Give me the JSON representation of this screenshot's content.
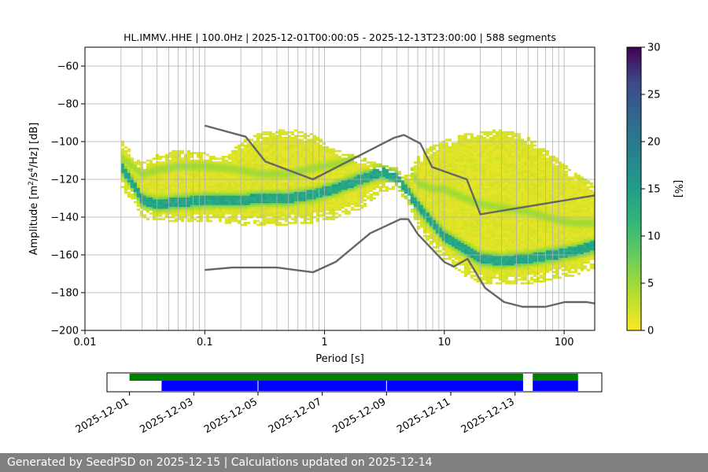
{
  "chart_data": [
    {
      "type": "heatmap",
      "title": "HL.IMMV..HHE | 100.0Hz | 2025-12-01T00:00:05 - 2025-12-13T23:00:00 | 588 segments",
      "xlabel": "Period [s]",
      "ylabel_parts": [
        "Amplitude [m",
        "2",
        "/s",
        "4",
        "/Hz] [dB]"
      ],
      "x_scale": "log",
      "xlim": [
        0.01,
        180
      ],
      "ylim": [
        -200,
        -50
      ],
      "xticks": [
        0.01,
        0.1,
        1,
        10,
        100
      ],
      "xtick_labels": [
        "0.01",
        "0.1",
        "1",
        "10",
        "100"
      ],
      "yticks": [
        -200,
        -180,
        -160,
        -140,
        -120,
        -100,
        -80,
        -60
      ],
      "ytick_labels": [
        "−200",
        "−180",
        "−160",
        "−140",
        "−120",
        "−100",
        "−80",
        "−60"
      ],
      "grid_periods": [
        0.02,
        0.03,
        0.04,
        0.05,
        0.06,
        0.07,
        0.08,
        0.09,
        0.1,
        0.2,
        0.3,
        0.4,
        0.5,
        0.6,
        0.7,
        0.8,
        0.9,
        1,
        2,
        3,
        4,
        5,
        6,
        7,
        8,
        9,
        10,
        20,
        30,
        40,
        50,
        60,
        70,
        80,
        90,
        100
      ],
      "grid_y": [
        -180,
        -160,
        -140,
        -120,
        -100,
        -80,
        -60
      ],
      "colorbar": {
        "label": "[%]",
        "range": [
          0,
          30
        ],
        "ticks": [
          0,
          5,
          10,
          15,
          20,
          25,
          30
        ],
        "tick_labels": [
          "0",
          "5",
          "10",
          "15",
          "20",
          "25",
          "30"
        ],
        "colormap": "viridis_r"
      },
      "density_band": {
        "period": [
          0.02,
          0.025,
          0.03,
          0.04,
          0.06,
          0.1,
          0.15,
          0.2,
          0.3,
          0.5,
          0.8,
          1.2,
          2,
          3,
          4,
          5,
          6,
          8,
          10,
          15,
          20,
          30,
          50,
          80,
          120,
          180
        ],
        "upper_db": [
          -99,
          -106,
          -111,
          -107,
          -104,
          -106,
          -108,
          -100,
          -95,
          -93,
          -96,
          -104,
          -108,
          -112,
          -114,
          -118,
          -108,
          -102,
          -99,
          -96,
          -95,
          -93,
          -97,
          -107,
          -116,
          -123
        ],
        "lower_db": [
          -124,
          -131,
          -139,
          -142,
          -142,
          -142,
          -142,
          -143,
          -144,
          -143,
          -142,
          -140,
          -135,
          -126,
          -124,
          -132,
          -145,
          -155,
          -162,
          -170,
          -174,
          -175,
          -175,
          -172,
          -170,
          -166
        ],
        "core_db": [
          -113,
          -122,
          -131,
          -133,
          -132,
          -131,
          -131,
          -131,
          -130,
          -130,
          -128,
          -125,
          -120,
          -116,
          -119,
          -127,
          -134,
          -143,
          -150,
          -157,
          -162,
          -163,
          -162,
          -160,
          -158,
          -155
        ],
        "ridge_db": [
          -108,
          -113,
          -117,
          -115,
          -113,
          -113,
          -114,
          -115,
          -117,
          -117,
          -114,
          -112,
          -108,
          -105,
          -108,
          -112,
          -122,
          -125,
          -125,
          -130,
          -133,
          -135,
          -137,
          -141,
          -143,
          -143
        ]
      },
      "series": [
        {
          "role": "high noise model",
          "color": "#666666",
          "x": [
            0.1,
            0.22,
            0.32,
            0.8,
            3.8,
            4.6,
            6.3,
            7.9,
            15.4,
            20,
            180
          ],
          "y": [
            -91.5,
            -97.4,
            -110.5,
            -120.0,
            -98.0,
            -96.5,
            -101.0,
            -113.5,
            -120.0,
            -138.5,
            -128.5
          ]
        },
        {
          "role": "low noise model",
          "color": "#666666",
          "x": [
            0.1,
            0.17,
            0.4,
            0.8,
            1.24,
            2.4,
            4.3,
            5.0,
            6.0,
            10.0,
            12.0,
            15.6,
            21.9,
            31.6,
            45.0,
            70.0,
            101.0,
            154.0,
            180
          ],
          "y": [
            -168.0,
            -166.7,
            -166.7,
            -169.2,
            -163.7,
            -148.6,
            -141.1,
            -141.1,
            -149.0,
            -163.8,
            -166.2,
            -162.1,
            -177.5,
            -185.0,
            -187.5,
            -187.5,
            -185.0,
            -185.0,
            -185.7
          ]
        }
      ]
    },
    {
      "type": "timeline",
      "tick_labels": [
        "2025-12-01",
        "2025-12-03",
        "2025-12-05",
        "2025-12-07",
        "2025-12-09",
        "2025-12-11",
        "2025-12-13"
      ],
      "tick_days": [
        0,
        2,
        4,
        6,
        8,
        10,
        12
      ],
      "xlim_days": [
        -0.7,
        14.7
      ],
      "bars": [
        {
          "label": "data availability",
          "color": "#008000",
          "intervals": [
            [
              0,
              12.25
            ],
            [
              12.55,
              13.96
            ]
          ]
        },
        {
          "label": "psd segments",
          "color": "#0000ff",
          "intervals": [
            [
              1.0,
              12.25
            ],
            [
              12.55,
              13.96
            ]
          ],
          "gaps_days": [
            4.0,
            8.0
          ]
        }
      ]
    }
  ],
  "footer": {
    "text": "Generated by SeedPSD on 2025-12-15 | Calculations updated on 2025-12-14"
  }
}
